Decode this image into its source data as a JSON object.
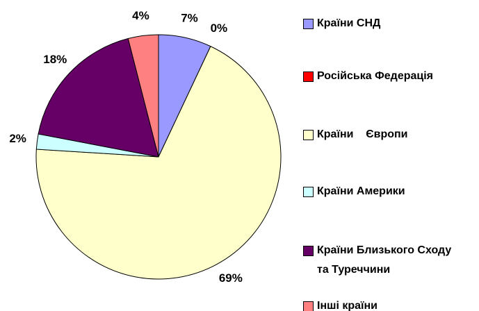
{
  "chart_data": {
    "type": "pie",
    "categories": [
      "Країни СНД",
      "Російська Федерація",
      "Країни    Європи",
      "Країни Америки",
      "Країни Близького Сходу та Туреччини",
      "Інші країни"
    ],
    "values": [
      7,
      0,
      69,
      2,
      18,
      4
    ],
    "value_labels": [
      "7%",
      "0%",
      "69%",
      "2%",
      "18%",
      "4%"
    ],
    "colors": [
      "#9999ff",
      "#ff0000",
      "#ffffcc",
      "#ccffff",
      "#660066",
      "#ff8080"
    ],
    "legend": "right"
  }
}
